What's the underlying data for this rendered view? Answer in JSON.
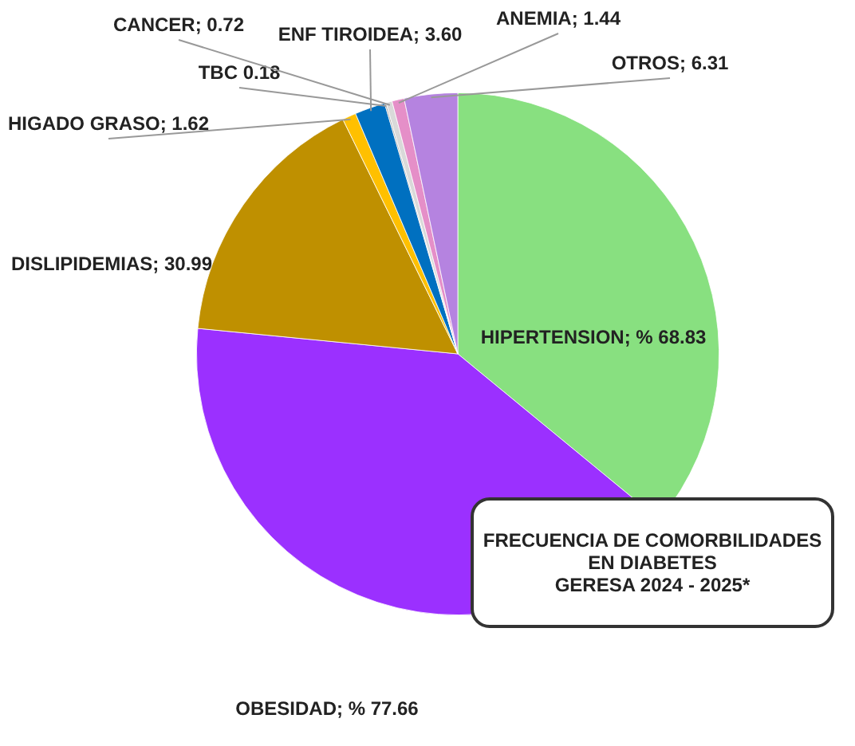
{
  "chart_data": {
    "type": "pie",
    "title": "FRECUENCIA DE COMORBILIDADES EN DIABETES\nGERESA 2024 - 2025*",
    "categories": [
      "HIPERTENSION",
      "OBESIDAD",
      "DISLIPIDEMIAS",
      "HIGADO GRASO",
      "ENF TIROIDEA",
      "TBC",
      "CANCER",
      "ANEMIA",
      "OTROS"
    ],
    "values": [
      68.83,
      77.66,
      30.99,
      1.62,
      3.6,
      0.18,
      0.72,
      1.44,
      6.31
    ],
    "colors": [
      "#88e080",
      "#9b30ff",
      "#bf9000",
      "#ffc000",
      "#0070c0",
      "#a6a6a6",
      "#d9d9d9",
      "#e58fc8",
      "#b583e0"
    ],
    "value_labels": [
      "% 68.83",
      "% 77.66",
      "30.99",
      "1.62",
      "3.60",
      "0.18",
      "0.72",
      "1.44",
      "6.31"
    ],
    "legend": false
  }
}
